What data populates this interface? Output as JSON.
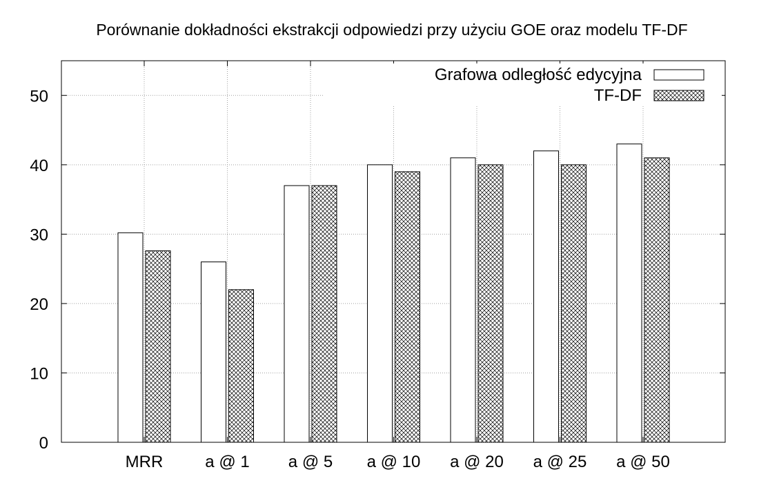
{
  "chart_data": {
    "type": "bar",
    "title": "Porównanie dokładności ekstrakcji odpowiedzi przy użyciu GOE oraz modelu TF-DF",
    "xlabel": "",
    "ylabel": "",
    "categories": [
      "MRR",
      "a @ 1",
      "a @ 5",
      "a @ 10",
      "a @ 20",
      "a @ 25",
      "a @ 50"
    ],
    "series": [
      {
        "name": "Grafowa odległość edycyjna",
        "values": [
          30.2,
          26,
          37,
          40,
          41,
          42,
          43
        ],
        "pattern": "empty"
      },
      {
        "name": "TF-DF",
        "values": [
          27.6,
          22,
          37,
          39,
          40,
          40,
          41
        ],
        "pattern": "crosshatch"
      }
    ],
    "ylim": [
      0,
      55
    ],
    "yticks": [
      0,
      10,
      20,
      30,
      40,
      50
    ],
    "grid": true,
    "legend_position": "top-right",
    "colors": {
      "bar_fill": "#ffffff",
      "bar_stroke": "#000000",
      "grid": "#a0a0a0",
      "hatch": "#000000"
    }
  }
}
